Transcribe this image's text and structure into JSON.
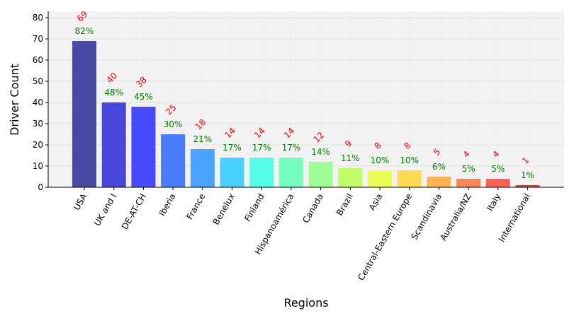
{
  "chart_data": {
    "type": "bar",
    "xlabel": "Regions",
    "ylabel": "Driver Count",
    "ylim": [
      0,
      83
    ],
    "yticks": [
      "0",
      "10",
      "20",
      "30",
      "40",
      "50",
      "60",
      "70",
      "80"
    ],
    "grid": true,
    "categories": [
      "USA",
      "UK and I",
      "DE-AT-CH",
      "Iberia",
      "France",
      "Benelux",
      "Finland",
      "Hispanoamérica",
      "Canada",
      "Brazil",
      "Asia",
      "Central-Eastern Europe",
      "Scandinavia",
      "Australia/NZ",
      "Italy",
      "International"
    ],
    "values": [
      69,
      40,
      38,
      25,
      18,
      14,
      14,
      14,
      12,
      9,
      8,
      8,
      5,
      4,
      4,
      1
    ],
    "count_labels": [
      "69",
      "40",
      "38",
      "25",
      "18",
      "14",
      "14",
      "14",
      "12",
      "9",
      "8",
      "8",
      "5",
      "4",
      "4",
      "1"
    ],
    "percent_labels": [
      "82%",
      "48%",
      "45%",
      "30%",
      "21%",
      "17%",
      "17%",
      "17%",
      "14%",
      "11%",
      "10%",
      "10%",
      "6%",
      "5%",
      "5%",
      "1%"
    ],
    "colors": [
      "#1f1f8f",
      "#1a1ad2",
      "#1f1fff",
      "#1f5fff",
      "#1f8fff",
      "#1fc7ff",
      "#2affe5",
      "#55ffb0",
      "#88ff7e",
      "#b0ff44",
      "#e8ff2c",
      "#ffd42a",
      "#ffa22a",
      "#ff6a2a",
      "#ff3a2a",
      "#b01e1e"
    ],
    "bar_opacity": 0.8,
    "label_colors": {
      "count": "#ff0000",
      "percent": "#008000"
    }
  }
}
